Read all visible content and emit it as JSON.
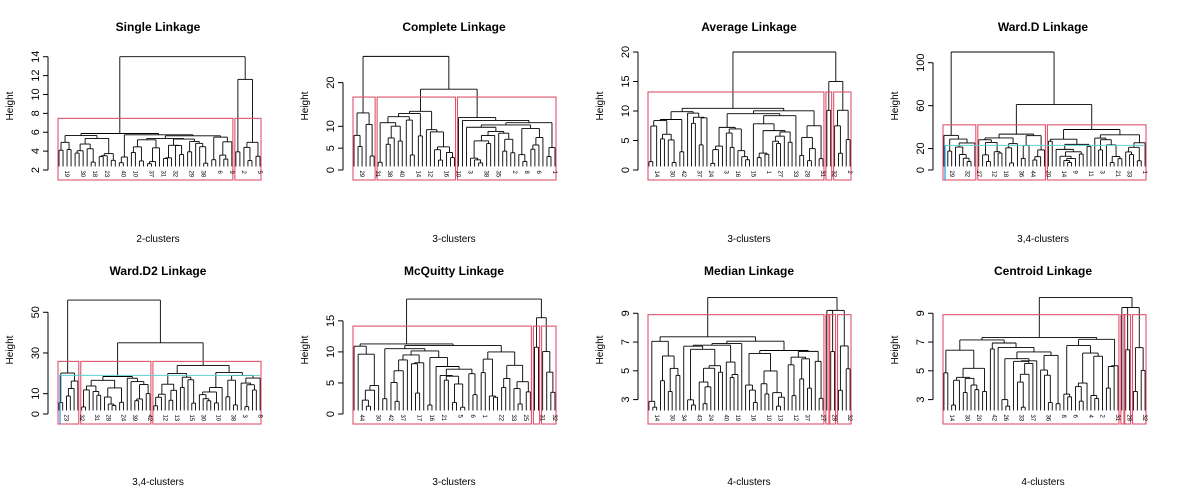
{
  "colors": {
    "axis": "#000000",
    "cluster_box": "#df536b",
    "cut_line_blue": "#2297e6",
    "cut_line_teal": "#61d0cf"
  },
  "chart_data": [
    {
      "type": "dendrogram",
      "title": "Single Linkage",
      "ylabel": "Height",
      "xlabel": "2-clusters",
      "ylim": [
        2,
        14.5
      ],
      "yticks": [
        2,
        4,
        6,
        8,
        10,
        12,
        14
      ],
      "root_height": 14.0,
      "child_heights": [
        7.6,
        11.6
      ],
      "leaves_per_cluster": [
        44,
        7
      ],
      "cluster_groups": [
        [
          1
        ],
        [
          2
        ]
      ],
      "cut_lines": [],
      "sample_leaf_labels": [
        "19",
        "30",
        "18",
        "23",
        "40",
        "10",
        "37",
        "31",
        "32",
        "29",
        "38",
        "6",
        "9",
        "2",
        "5"
      ]
    },
    {
      "type": "dendrogram",
      "title": "Complete Linkage",
      "ylabel": "Height",
      "xlabel": "3-clusters",
      "ylim": [
        0,
        27
      ],
      "yticks": [
        0,
        5,
        10,
        20
      ],
      "root_height": 26.0,
      "child_heights": [
        17.0,
        18.5
      ],
      "leaves_per_cluster": [
        6,
        20,
        25
      ],
      "cluster_groups": [
        [
          1
        ],
        [
          2
        ],
        [
          3
        ]
      ],
      "cut_lines": [],
      "sample_leaf_labels": [
        "29",
        "31",
        "38",
        "40",
        "14",
        "12",
        "16",
        "10",
        "3",
        "38",
        "35",
        "2",
        "8",
        "6",
        "1"
      ]
    },
    {
      "type": "dendrogram",
      "title": "Average Linkage",
      "ylabel": "Height",
      "xlabel": "3-clusters",
      "ylim": [
        0,
        20
      ],
      "yticks": [
        0,
        5,
        10,
        15,
        20
      ],
      "root_height": 20.0,
      "child_heights": [
        13.5,
        15.0
      ],
      "leaves_per_cluster": [
        46,
        2,
        5
      ],
      "cluster_groups": [
        [
          1
        ],
        [
          2
        ],
        [
          3
        ]
      ],
      "cut_lines": [],
      "sample_leaf_labels": [
        "14",
        "30",
        "42",
        "37",
        "24",
        "3",
        "16",
        "15",
        "1",
        "27",
        "33",
        "28",
        "31",
        "32",
        "2"
      ]
    },
    {
      "type": "dendrogram",
      "title": "Ward.D Linkage",
      "ylabel": "Height",
      "xlabel": "3,4-clusters",
      "ylim": [
        0,
        110
      ],
      "yticks": [
        0,
        20,
        60,
        100
      ],
      "root_height": 110.0,
      "child_heights": [
        42.0,
        61.0
      ],
      "leaves_per_cluster": [
        9,
        18,
        12,
        14
      ],
      "cluster_groups": [
        [
          1
        ],
        [
          2
        ],
        [
          3,
          4
        ]
      ],
      "cut_lines": [
        23
      ],
      "sample_leaf_labels": [
        "29",
        "32",
        "27",
        "12",
        "18",
        "36",
        "44",
        "20",
        "14",
        "9",
        "11",
        "3",
        "21",
        "33",
        "1"
      ]
    },
    {
      "type": "dendrogram",
      "title": "Ward.D2 Linkage",
      "ylabel": "Height",
      "xlabel": "3,4-clusters",
      "ylim": [
        0,
        58
      ],
      "yticks": [
        0,
        10,
        30,
        50
      ],
      "root_height": 56.0,
      "child_heights": [
        26.0,
        35.0
      ],
      "leaves_per_cluster": [
        6,
        19,
        12,
        17
      ],
      "cluster_groups": [
        [
          1
        ],
        [
          2
        ],
        [
          3,
          4
        ]
      ],
      "cut_lines": [
        19
      ],
      "sample_leaf_labels": [
        "23",
        "32",
        "31",
        "28",
        "24",
        "39",
        "42",
        "12",
        "13",
        "15",
        "30",
        "10",
        "38",
        "3",
        "8"
      ]
    },
    {
      "type": "dendrogram",
      "title": "McQuitty Linkage",
      "ylabel": "Height",
      "xlabel": "3-clusters",
      "ylim": [
        0,
        19
      ],
      "yticks": [
        0,
        5,
        10,
        15
      ],
      "root_height": 18.5,
      "child_heights": [
        14.5,
        15.5
      ],
      "leaves_per_cluster": [
        44,
        2,
        4
      ],
      "cluster_groups": [
        [
          1
        ],
        [
          2
        ],
        [
          3
        ]
      ],
      "cut_lines": [],
      "sample_leaf_labels": [
        "44",
        "30",
        "42",
        "37",
        "17",
        "16",
        "21",
        "5",
        "6",
        "1",
        "22",
        "33",
        "25",
        "31",
        "32"
      ]
    },
    {
      "type": "dendrogram",
      "title": "Median Linkage",
      "ylabel": "Height",
      "xlabel": "4-clusters",
      "ylim": [
        2,
        10.2
      ],
      "yticks": [
        3,
        5,
        7,
        9
      ],
      "root_height": 10.1,
      "child_heights": [
        9.6,
        9.2
      ],
      "leaves_per_cluster": [
        46,
        1,
        2,
        4
      ],
      "cluster_groups": [
        [
          1
        ],
        [
          2
        ],
        [
          3
        ],
        [
          4
        ]
      ],
      "cut_lines": [],
      "sample_leaf_labels": [
        "14",
        "30",
        "34",
        "43",
        "24",
        "40",
        "19",
        "16",
        "10",
        "13",
        "12",
        "37",
        "27",
        "28",
        "32"
      ]
    },
    {
      "type": "dendrogram",
      "title": "Centroid Linkage",
      "ylabel": "Height",
      "xlabel": "4-clusters",
      "ylim": [
        2,
        10.2
      ],
      "yticks": [
        3,
        5,
        7,
        9
      ],
      "root_height": 10.1,
      "child_heights": [
        9.2,
        9.4
      ],
      "leaves_per_cluster": [
        46,
        1,
        2,
        4
      ],
      "cluster_groups": [
        [
          1
        ],
        [
          2
        ],
        [
          3
        ],
        [
          4
        ]
      ],
      "cut_lines": [],
      "sample_leaf_labels": [
        "14",
        "30",
        "20",
        "42",
        "26",
        "33",
        "37",
        "36",
        "8",
        "6",
        "4",
        "2",
        "31",
        "28",
        "32"
      ]
    }
  ]
}
